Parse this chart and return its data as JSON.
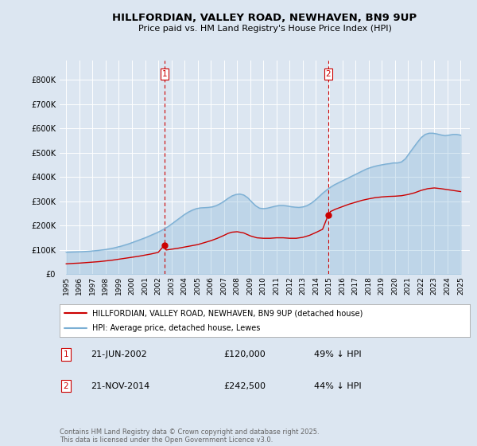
{
  "title": "HILLFORDIAN, VALLEY ROAD, NEWHAVEN, BN9 9UP",
  "subtitle": "Price paid vs. HM Land Registry's House Price Index (HPI)",
  "legend_line1": "HILLFORDIAN, VALLEY ROAD, NEWHAVEN, BN9 9UP (detached house)",
  "legend_line2": "HPI: Average price, detached house, Lewes",
  "footer": "Contains HM Land Registry data © Crown copyright and database right 2025.\nThis data is licensed under the Open Government Licence v3.0.",
  "annotation1": {
    "label": "1",
    "date": "21-JUN-2002",
    "price": "£120,000",
    "note": "49% ↓ HPI"
  },
  "annotation2": {
    "label": "2",
    "date": "21-NOV-2014",
    "price": "£242,500",
    "note": "44% ↓ HPI"
  },
  "red_line_color": "#cc0000",
  "blue_line_color": "#7bafd4",
  "background_color": "#dce6f1",
  "plot_bg_color": "#dce6f1",
  "grid_color": "#ffffff",
  "vline_color": "#cc0000",
  "ylim": [
    0,
    880000
  ],
  "yticks": [
    0,
    100000,
    200000,
    300000,
    400000,
    500000,
    600000,
    700000,
    800000
  ],
  "ytick_labels": [
    "£0",
    "£100K",
    "£200K",
    "£300K",
    "£400K",
    "£500K",
    "£600K",
    "£700K",
    "£800K"
  ],
  "xlim_start": 1994.5,
  "xlim_end": 2025.7,
  "xtick_years": [
    1995,
    1996,
    1997,
    1998,
    1999,
    2000,
    2001,
    2002,
    2003,
    2004,
    2005,
    2006,
    2007,
    2008,
    2009,
    2010,
    2011,
    2012,
    2013,
    2014,
    2015,
    2016,
    2017,
    2018,
    2019,
    2020,
    2021,
    2022,
    2023,
    2024,
    2025
  ],
  "hpi_x": [
    1995.0,
    1995.3,
    1995.6,
    1995.9,
    1996.2,
    1996.5,
    1996.8,
    1997.1,
    1997.4,
    1997.7,
    1998.0,
    1998.3,
    1998.6,
    1998.9,
    1999.2,
    1999.5,
    1999.8,
    2000.1,
    2000.4,
    2000.7,
    2001.0,
    2001.3,
    2001.6,
    2001.9,
    2002.2,
    2002.5,
    2002.8,
    2003.1,
    2003.4,
    2003.7,
    2004.0,
    2004.3,
    2004.6,
    2004.9,
    2005.2,
    2005.5,
    2005.8,
    2006.1,
    2006.4,
    2006.7,
    2007.0,
    2007.3,
    2007.6,
    2007.9,
    2008.2,
    2008.5,
    2008.8,
    2009.1,
    2009.4,
    2009.7,
    2010.0,
    2010.3,
    2010.6,
    2010.9,
    2011.2,
    2011.5,
    2011.8,
    2012.1,
    2012.4,
    2012.7,
    2013.0,
    2013.3,
    2013.6,
    2013.9,
    2014.2,
    2014.5,
    2014.8,
    2015.1,
    2015.4,
    2015.7,
    2016.0,
    2016.3,
    2016.6,
    2016.9,
    2017.2,
    2017.5,
    2017.8,
    2018.1,
    2018.4,
    2018.7,
    2019.0,
    2019.3,
    2019.6,
    2019.9,
    2020.2,
    2020.5,
    2020.8,
    2021.1,
    2021.4,
    2021.7,
    2022.0,
    2022.3,
    2022.6,
    2022.9,
    2023.2,
    2023.5,
    2023.8,
    2024.1,
    2024.4,
    2024.7,
    2025.0
  ],
  "hpi_y": [
    91000,
    91500,
    92000,
    92500,
    93000,
    94000,
    95000,
    96500,
    98000,
    100000,
    102000,
    105000,
    108000,
    112000,
    116000,
    121000,
    126000,
    132000,
    138000,
    144000,
    150000,
    157000,
    164000,
    171000,
    179000,
    188000,
    198000,
    210000,
    222000,
    234000,
    246000,
    256000,
    264000,
    270000,
    273000,
    274000,
    275000,
    277000,
    282000,
    290000,
    300000,
    312000,
    322000,
    328000,
    330000,
    326000,
    315000,
    298000,
    282000,
    272000,
    270000,
    272000,
    276000,
    280000,
    283000,
    283000,
    281000,
    278000,
    276000,
    275000,
    277000,
    282000,
    291000,
    303000,
    318000,
    333000,
    346000,
    358000,
    368000,
    376000,
    384000,
    392000,
    400000,
    408000,
    416000,
    424000,
    432000,
    438000,
    443000,
    447000,
    450000,
    453000,
    455000,
    458000,
    458000,
    462000,
    475000,
    498000,
    520000,
    542000,
    562000,
    575000,
    580000,
    580000,
    577000,
    573000,
    570000,
    572000,
    575000,
    575000,
    572000
  ],
  "price_x": [
    1995.0,
    1995.3,
    1995.6,
    1996.0,
    1996.5,
    1997.0,
    1997.5,
    1998.0,
    1998.5,
    1999.0,
    1999.5,
    2000.0,
    2000.5,
    2001.0,
    2001.5,
    2002.0,
    2002.47,
    2002.6,
    2003.0,
    2003.5,
    2004.0,
    2004.5,
    2005.0,
    2005.5,
    2006.0,
    2006.5,
    2007.0,
    2007.3,
    2007.6,
    2008.0,
    2008.5,
    2009.0,
    2009.5,
    2010.0,
    2010.5,
    2011.0,
    2011.5,
    2012.0,
    2012.5,
    2013.0,
    2013.5,
    2014.0,
    2014.5,
    2014.92,
    2015.1,
    2015.5,
    2016.0,
    2016.5,
    2017.0,
    2017.5,
    2018.0,
    2018.5,
    2019.0,
    2019.5,
    2020.0,
    2020.5,
    2021.0,
    2021.5,
    2022.0,
    2022.5,
    2023.0,
    2023.5,
    2024.0,
    2024.5,
    2025.0
  ],
  "price_y": [
    43000,
    44000,
    45000,
    46000,
    48000,
    50000,
    52000,
    55000,
    58000,
    62000,
    66000,
    70000,
    74000,
    79000,
    84000,
    90000,
    120000,
    100000,
    103000,
    107000,
    112000,
    117000,
    122000,
    130000,
    138000,
    148000,
    160000,
    168000,
    173000,
    175000,
    170000,
    158000,
    150000,
    148000,
    148000,
    150000,
    150000,
    148000,
    148000,
    152000,
    160000,
    172000,
    185000,
    242500,
    258000,
    268000,
    278000,
    288000,
    296000,
    304000,
    310000,
    315000,
    318000,
    320000,
    321000,
    323000,
    328000,
    335000,
    345000,
    352000,
    355000,
    352000,
    348000,
    344000,
    340000
  ],
  "vline1_x": 2002.47,
  "vline2_x": 2014.92,
  "marker1_x": 2002.47,
  "marker1_y": 120000,
  "marker2_x": 2014.92,
  "marker2_y": 242500
}
